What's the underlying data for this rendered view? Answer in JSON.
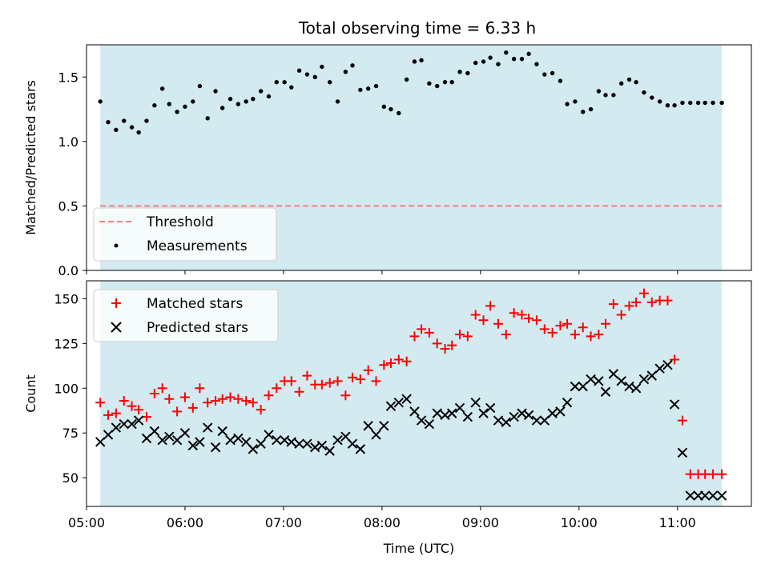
{
  "title": "Total observing time = 6.33 h",
  "chart_data": [
    {
      "type": "scatter",
      "ylabel": "Matched/Predicted stars",
      "xlabel": "",
      "ylim": [
        0,
        1.75
      ],
      "yticks": [
        0.0,
        0.5,
        1.0,
        1.5
      ],
      "ytick_labels": [
        "0.0",
        "0.5",
        "1.0",
        "1.5"
      ],
      "xlim": [
        5.0,
        11.75
      ],
      "shaded_span": [
        5.14,
        11.45
      ],
      "shade_color": "#d3eaf0",
      "threshold": {
        "name": "Threshold",
        "value": 0.5,
        "color": "#f08080"
      },
      "legend_position": "lower-left",
      "series": [
        {
          "name": "Measurements",
          "color": "#000000",
          "marker": "dot",
          "x": [
            5.14,
            5.22,
            5.3,
            5.38,
            5.46,
            5.53,
            5.61,
            5.69,
            5.77,
            5.84,
            5.92,
            6.0,
            6.08,
            6.15,
            6.23,
            6.31,
            6.38,
            6.46,
            6.54,
            6.62,
            6.69,
            6.77,
            6.85,
            6.93,
            7.01,
            7.08,
            7.16,
            7.24,
            7.32,
            7.39,
            7.47,
            7.55,
            7.63,
            7.7,
            7.78,
            7.86,
            7.94,
            8.02,
            8.09,
            8.17,
            8.25,
            8.33,
            8.4,
            8.48,
            8.56,
            8.64,
            8.71,
            8.79,
            8.87,
            8.95,
            9.03,
            9.1,
            9.18,
            9.26,
            9.34,
            9.42,
            9.49,
            9.57,
            9.65,
            9.73,
            9.81,
            9.88,
            9.96,
            10.04,
            10.12,
            10.2,
            10.27,
            10.35,
            10.43,
            10.51,
            10.58,
            10.66,
            10.74,
            10.82,
            10.9,
            10.97,
            11.05,
            11.13,
            11.21,
            11.28,
            11.36,
            11.45
          ],
          "y": [
            1.31,
            1.15,
            1.09,
            1.16,
            1.11,
            1.07,
            1.16,
            1.28,
            1.41,
            1.29,
            1.23,
            1.27,
            1.31,
            1.43,
            1.18,
            1.39,
            1.26,
            1.33,
            1.29,
            1.31,
            1.33,
            1.39,
            1.35,
            1.46,
            1.46,
            1.42,
            1.55,
            1.52,
            1.5,
            1.58,
            1.46,
            1.31,
            1.54,
            1.59,
            1.4,
            1.41,
            1.43,
            1.27,
            1.25,
            1.22,
            1.48,
            1.62,
            1.63,
            1.45,
            1.43,
            1.46,
            1.46,
            1.54,
            1.53,
            1.61,
            1.62,
            1.65,
            1.6,
            1.69,
            1.64,
            1.64,
            1.68,
            1.6,
            1.52,
            1.53,
            1.47,
            1.29,
            1.31,
            1.23,
            1.25,
            1.39,
            1.36,
            1.36,
            1.45,
            1.48,
            1.46,
            1.38,
            1.34,
            1.31,
            1.28,
            1.28,
            1.3,
            1.3,
            1.3,
            1.3,
            1.3,
            1.3
          ]
        }
      ]
    },
    {
      "type": "scatter",
      "ylabel": "Count",
      "xlabel": "Time (UTC)",
      "ylim": [
        34,
        160
      ],
      "yticks": [
        50,
        75,
        100,
        125,
        150
      ],
      "ytick_labels": [
        "50",
        "75",
        "100",
        "125",
        "150"
      ],
      "xlim": [
        5.0,
        11.75
      ],
      "xticks": [
        5,
        6,
        7,
        8,
        9,
        10,
        11
      ],
      "xtick_labels": [
        "05:00",
        "06:00",
        "07:00",
        "08:00",
        "09:00",
        "10:00",
        "11:00"
      ],
      "shaded_span": [
        5.14,
        11.45
      ],
      "shade_color": "#d3eaf0",
      "legend_position": "upper-left",
      "series": [
        {
          "name": "Matched stars",
          "color": "#ff0000",
          "marker": "plus",
          "x": [
            5.14,
            5.22,
            5.3,
            5.38,
            5.46,
            5.53,
            5.61,
            5.69,
            5.77,
            5.84,
            5.92,
            6.0,
            6.08,
            6.15,
            6.23,
            6.31,
            6.38,
            6.46,
            6.54,
            6.62,
            6.69,
            6.77,
            6.85,
            6.93,
            7.01,
            7.08,
            7.16,
            7.24,
            7.32,
            7.39,
            7.47,
            7.55,
            7.63,
            7.7,
            7.78,
            7.86,
            7.94,
            8.02,
            8.09,
            8.17,
            8.25,
            8.33,
            8.4,
            8.48,
            8.56,
            8.64,
            8.71,
            8.79,
            8.87,
            8.95,
            9.03,
            9.1,
            9.18,
            9.26,
            9.34,
            9.42,
            9.49,
            9.57,
            9.65,
            9.73,
            9.81,
            9.88,
            9.96,
            10.04,
            10.12,
            10.2,
            10.27,
            10.35,
            10.43,
            10.51,
            10.58,
            10.66,
            10.74,
            10.82,
            10.9,
            10.97,
            11.05,
            11.13,
            11.21,
            11.28,
            11.36,
            11.45
          ],
          "y": [
            92,
            85,
            86,
            93,
            90,
            88,
            84,
            97,
            100,
            94,
            87,
            95,
            89,
            100,
            92,
            93,
            94,
            95,
            94,
            93,
            92,
            88,
            96,
            100,
            104,
            104,
            98,
            107,
            102,
            102,
            103,
            104,
            96,
            106,
            105,
            110,
            104,
            113,
            114,
            116,
            115,
            129,
            133,
            131,
            125,
            122,
            124,
            130,
            129,
            141,
            138,
            146,
            136,
            130,
            142,
            141,
            139,
            138,
            133,
            131,
            135,
            136,
            130,
            134,
            129,
            130,
            136,
            147,
            141,
            146,
            148,
            153,
            148,
            149,
            149,
            116,
            82,
            52,
            52,
            52,
            52,
            52
          ]
        },
        {
          "name": "Predicted stars",
          "color": "#000000",
          "marker": "x",
          "x": [
            5.14,
            5.22,
            5.3,
            5.38,
            5.46,
            5.53,
            5.61,
            5.69,
            5.77,
            5.84,
            5.92,
            6.0,
            6.08,
            6.15,
            6.23,
            6.31,
            6.38,
            6.46,
            6.54,
            6.62,
            6.69,
            6.77,
            6.85,
            6.93,
            7.01,
            7.08,
            7.16,
            7.24,
            7.32,
            7.39,
            7.47,
            7.55,
            7.63,
            7.7,
            7.78,
            7.86,
            7.94,
            8.02,
            8.09,
            8.17,
            8.25,
            8.33,
            8.4,
            8.48,
            8.56,
            8.64,
            8.71,
            8.79,
            8.87,
            8.95,
            9.03,
            9.1,
            9.18,
            9.26,
            9.34,
            9.42,
            9.49,
            9.57,
            9.65,
            9.73,
            9.81,
            9.88,
            9.96,
            10.04,
            10.12,
            10.2,
            10.27,
            10.35,
            10.43,
            10.51,
            10.58,
            10.66,
            10.74,
            10.82,
            10.9,
            10.97,
            11.05,
            11.13,
            11.21,
            11.28,
            11.36,
            11.45
          ],
          "y": [
            70,
            74,
            78,
            80,
            80,
            82,
            72,
            76,
            71,
            73,
            71,
            75,
            68,
            70,
            78,
            67,
            76,
            71,
            72,
            70,
            66,
            69,
            74,
            71,
            71,
            70,
            69,
            69,
            67,
            68,
            65,
            71,
            73,
            69,
            66,
            79,
            74,
            79,
            90,
            92,
            94,
            87,
            82,
            80,
            86,
            85,
            86,
            89,
            84,
            92,
            86,
            89,
            82,
            81,
            84,
            86,
            85,
            82,
            82,
            86,
            87,
            92,
            101,
            101,
            105,
            104,
            98,
            108,
            104,
            101,
            100,
            105,
            107,
            111,
            113,
            91,
            64,
            40,
            40,
            40,
            40,
            40
          ]
        }
      ]
    }
  ]
}
